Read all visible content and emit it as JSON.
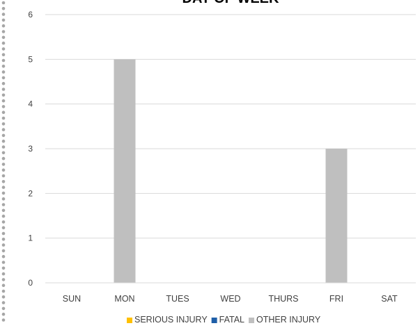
{
  "chart_data": {
    "type": "bar",
    "title": "DAY OF WEEK",
    "xlabel": "",
    "ylabel": "",
    "categories": [
      "SUN",
      "MON",
      "TUES",
      "WED",
      "THURS",
      "FRI",
      "SAT"
    ],
    "series": [
      {
        "name": "SERIOUS INJURY",
        "color": "#FFC000",
        "values": [
          0,
          0,
          0,
          0,
          0,
          0,
          0
        ]
      },
      {
        "name": "FATAL",
        "color": "#1F5FA8",
        "values": [
          0,
          0,
          0,
          0,
          0,
          0,
          0
        ]
      },
      {
        "name": "OTHER INJURY",
        "color": "#BFBFBF",
        "values": [
          0,
          5,
          0,
          0,
          0,
          3,
          0
        ]
      }
    ],
    "ylim": [
      0,
      6
    ],
    "yticks": [
      "0",
      "1",
      "2",
      "3",
      "4",
      "5",
      "6"
    ],
    "grid": true,
    "legend_position": "bottom"
  }
}
